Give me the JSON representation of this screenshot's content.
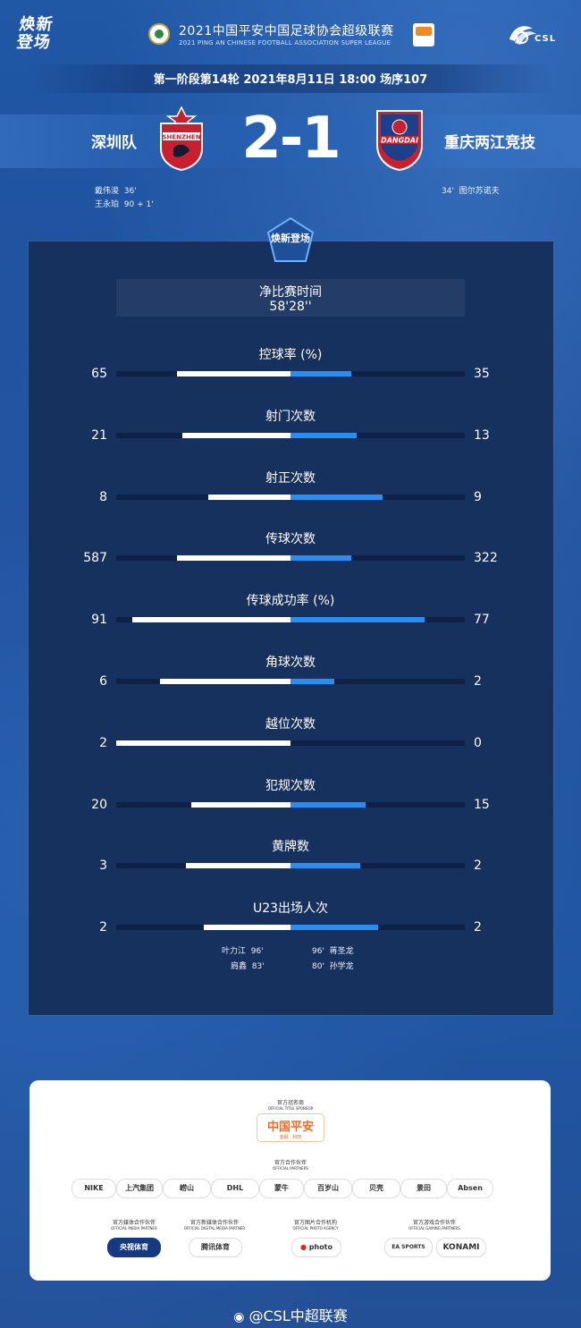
{
  "header": {
    "left_logo": "焕新登场",
    "title_cn": "2021中国平安中国足球协会超级联赛",
    "title_en": "2021 PING AN CHINESE FOOTBALL ASSOCIATION SUPER LEAGUE",
    "csl_text": "CSL"
  },
  "match": {
    "round_info": "第一阶段第14轮  2021年8月11日 18:00 场序107",
    "home_team": "深圳队",
    "away_team": "重庆两江竞技",
    "score": "2-1",
    "home_crest_text": "SHENZHEN",
    "away_crest_text": "DANGDAI",
    "home_scorers": [
      {
        "player": "戴伟浚",
        "minute": "36'"
      },
      {
        "player": "王永珀",
        "minute": "90 + 1'"
      }
    ],
    "away_scorers": [
      {
        "minute": "34'",
        "player": "图尔苏诺夫"
      }
    ]
  },
  "panel": {
    "logo": "焕新登场",
    "net_time_label": "净比赛时间",
    "net_time_value": "58'28''"
  },
  "stats": [
    {
      "label": "控球率 (%)",
      "home": "65",
      "away": "35",
      "home_frac": 0.65,
      "away_frac": 0.35
    },
    {
      "label": "射门次数",
      "home": "21",
      "away": "13",
      "home_frac": 0.62,
      "away_frac": 0.38
    },
    {
      "label": "射正次数",
      "home": "8",
      "away": "9",
      "home_frac": 0.47,
      "away_frac": 0.53
    },
    {
      "label": "传球次数",
      "home": "587",
      "away": "322",
      "home_frac": 0.65,
      "away_frac": 0.35
    },
    {
      "label": "传球成功率 (%)",
      "home": "91",
      "away": "77",
      "home_frac": 0.91,
      "away_frac": 0.77
    },
    {
      "label": "角球次数",
      "home": "6",
      "away": "2",
      "home_frac": 0.75,
      "away_frac": 0.25
    },
    {
      "label": "越位次数",
      "home": "2",
      "away": "0",
      "home_frac": 1.0,
      "away_frac": 0.0
    },
    {
      "label": "犯规次数",
      "home": "20",
      "away": "15",
      "home_frac": 0.57,
      "away_frac": 0.43
    },
    {
      "label": "黄牌数",
      "home": "3",
      "away": "2",
      "home_frac": 0.6,
      "away_frac": 0.4
    },
    {
      "label": "U23出场人次",
      "home": "2",
      "away": "2",
      "home_frac": 0.5,
      "away_frac": 0.5
    }
  ],
  "u23_players": {
    "home": [
      {
        "player": "叶力江",
        "minute": "96'"
      },
      {
        "player": "肩鑫",
        "minute": "83'"
      }
    ],
    "away": [
      {
        "minute": "96'",
        "player": "蒋圣龙"
      },
      {
        "minute": "80'",
        "player": "孙学龙"
      }
    ]
  },
  "sponsors": {
    "title_sponsor_cap_cn": "官方冠名商",
    "title_sponsor_cap_en": "OFFICIAL TITLE SPONSOR",
    "title_sponsor": "中国平安",
    "title_sponsor_sub": "金融 · 科技",
    "partners_cap_cn": "官方合作伙伴",
    "partners_cap_en": "OFFICIAL PARTNERS",
    "partners": [
      "NIKE",
      "上汽集团",
      "崂山",
      "DHL",
      "蒙牛",
      "百岁山",
      "贝壳",
      "景田",
      "Absen"
    ],
    "media_cap_cn": "官方媒体合作伙伴",
    "media_cap_en": "OFFICIAL MEDIA PARTNER",
    "media": "央视体育",
    "digital_cap_cn": "官方新媒体合作伙伴",
    "digital_cap_en": "OFFICIAL DIGITAL MEDIA PARTNER",
    "digital": "腾讯体育",
    "photo_cap_cn": "官方图片合作机构",
    "photo_cap_en": "OFFICIAL PHOTO AGENCY",
    "photo": "photo",
    "gaming_cap_cn": "官方游戏合作伙伴",
    "gaming_cap_en": "OFFICIAL GAMING PARTNERS",
    "gaming": [
      "EA SPORTS",
      "KONAMI"
    ]
  },
  "footer": {
    "weibo": "@CSL中超联赛"
  },
  "colors": {
    "home_bar": "#ffffff",
    "away_bar": "#2b8df0",
    "panel": "#17315f",
    "home_red": "#c8202f",
    "away_red": "#c8202f"
  }
}
